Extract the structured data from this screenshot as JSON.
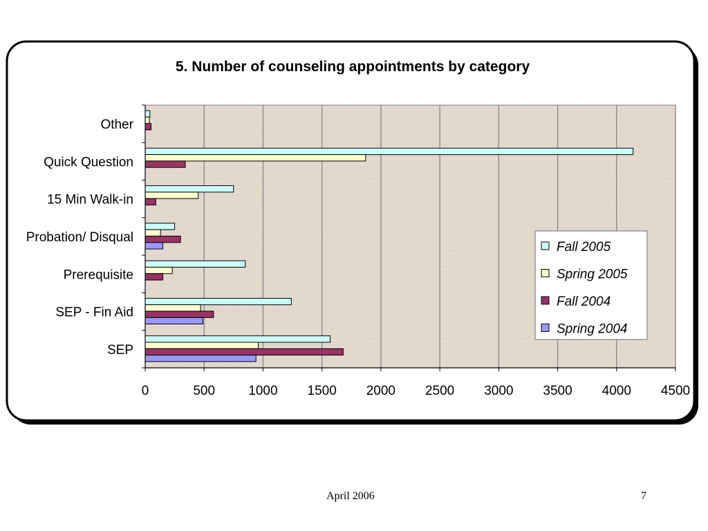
{
  "chart_data": {
    "type": "bar",
    "orientation": "horizontal",
    "title": "5.  Number of counseling appointments by category",
    "categories": [
      "Other",
      "Quick Question",
      "15 Min Walk-in",
      "Probation/ Disqual",
      "Prerequisite",
      "SEP - Fin Aid",
      "SEP"
    ],
    "series": [
      {
        "name": "Fall 2005",
        "color": "#ccffff",
        "values": [
          40,
          4140,
          750,
          250,
          850,
          1240,
          1570
        ]
      },
      {
        "name": "Spring 2005",
        "color": "#ffffcc",
        "values": [
          35,
          1870,
          450,
          130,
          230,
          470,
          960
        ]
      },
      {
        "name": "Fall 2004",
        "color": "#993366",
        "values": [
          50,
          340,
          90,
          300,
          150,
          580,
          1680
        ]
      },
      {
        "name": "Spring 2004",
        "color": "#9999ff",
        "values": [
          0,
          0,
          0,
          150,
          0,
          490,
          940
        ]
      }
    ],
    "xticks": [
      "0",
      "500",
      "1000",
      "1500",
      "2000",
      "2500",
      "3000",
      "3500",
      "4000",
      "4500"
    ],
    "xlim": [
      0,
      4500
    ],
    "grid": "vertical",
    "legend_position": "right",
    "plot_background": "#e2d8cc"
  },
  "footer": {
    "date": "April 2006",
    "page_number": "7"
  }
}
